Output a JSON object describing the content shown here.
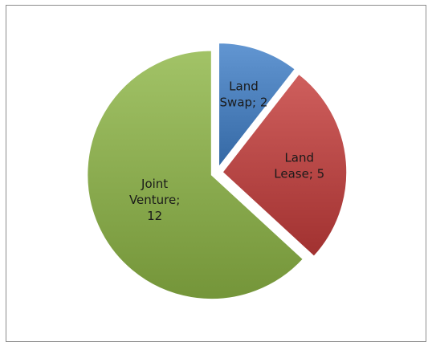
{
  "chart_data": {
    "type": "pie",
    "slices": [
      {
        "label": "Land Swap",
        "value": 2,
        "color": "#3F7FC8",
        "label_lines": [
          "Land",
          "Swap; 2"
        ]
      },
      {
        "label": "Land Lease",
        "value": 5,
        "color": "#C43C3A",
        "label_lines": [
          "Land",
          "Lease; 5"
        ]
      },
      {
        "label": "Joint Venture",
        "value": 12,
        "color": "#8DB646",
        "label_lines": [
          "Joint",
          "Venture;",
          "12"
        ]
      }
    ],
    "start_angle_deg": 0,
    "direction": "clockwise",
    "exploded": true,
    "legend": "none"
  }
}
